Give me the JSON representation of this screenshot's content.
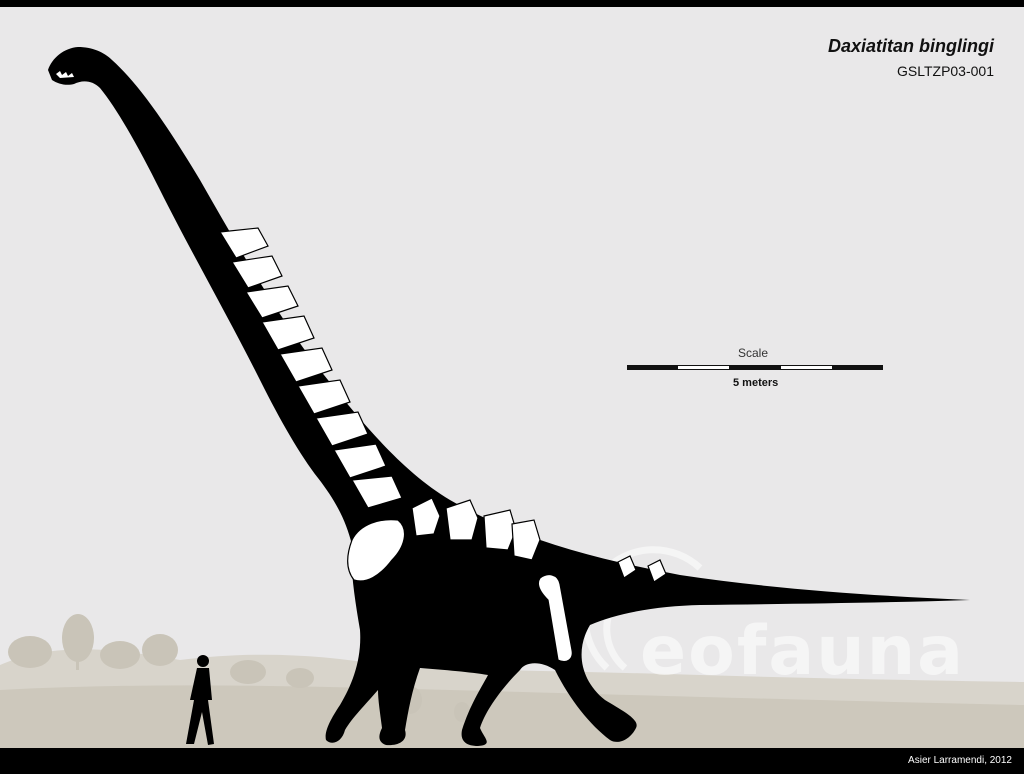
{
  "figure": {
    "title": "Daxiatitan binglingi",
    "specimen_id": "GSLTZP03-001",
    "scale": {
      "heading": "Scale",
      "value": "5 meters"
    },
    "watermark_text": "eofauna",
    "credit": "Asier Larramendi, 2012",
    "icons": [
      "dinosaur-silhouette",
      "human-silhouette",
      "landscape-background"
    ]
  }
}
